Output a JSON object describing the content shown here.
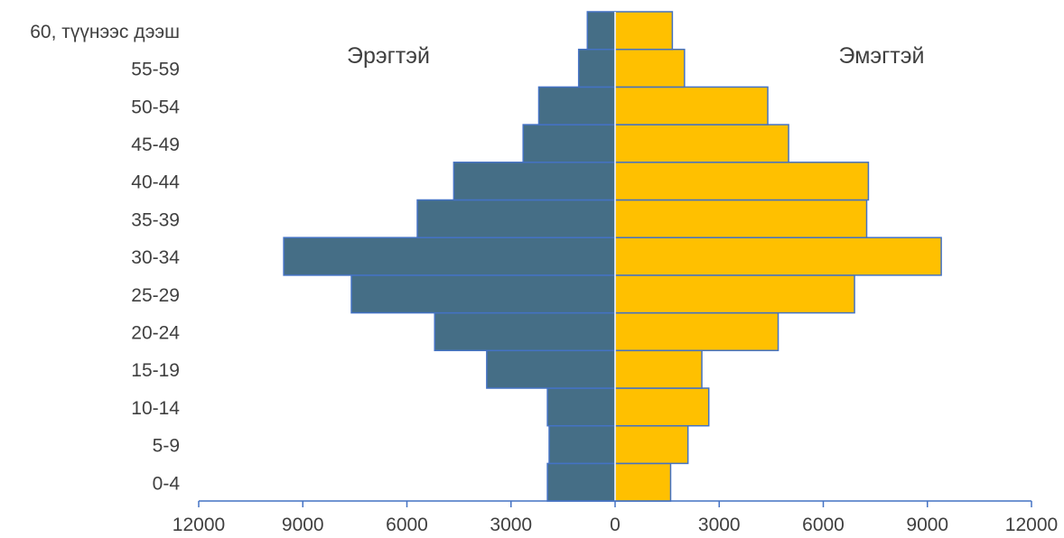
{
  "chart_data": {
    "type": "bar",
    "orientation": "horizontal",
    "style": "population-pyramid",
    "categories": [
      "0-4",
      "5-9",
      "10-14",
      "15-19",
      "20-24",
      "25-29",
      "30-34",
      "35-39",
      "40-44",
      "45-49",
      "50-54",
      "55-59",
      "60, түүнээс дээш"
    ],
    "series": [
      {
        "name": "Эрэгтэй",
        "side": "left",
        "color": "#456E86",
        "values": [
          1950,
          1900,
          1950,
          3700,
          5200,
          7600,
          9550,
          5700,
          4650,
          2650,
          2200,
          1050,
          800
        ]
      },
      {
        "name": "Эмэгтэй",
        "side": "right",
        "color": "#FFC000",
        "values": [
          1600,
          2100,
          2700,
          2500,
          4700,
          6900,
          9400,
          7250,
          7300,
          5000,
          4400,
          2000,
          1650
        ]
      }
    ],
    "x_ticks": [
      "12000",
      "9000",
      "6000",
      "3000",
      "0",
      "3000",
      "6000",
      "9000",
      "12000"
    ],
    "xlim": [
      -12000,
      12000
    ],
    "bar_edge_color": "#4472C4",
    "axis_color": "#4472C4",
    "grid": false,
    "legend": "none"
  }
}
